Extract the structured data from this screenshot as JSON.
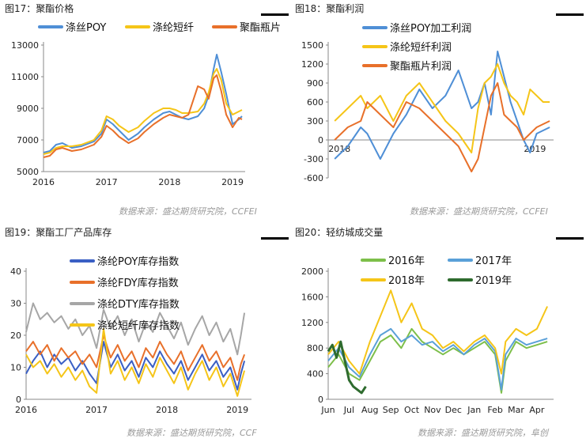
{
  "panels": [
    {
      "title": "图17：聚酯价格",
      "source": "数据来源：盛达期货研究院，CCFEI",
      "chart_data": {
        "type": "line",
        "x_ticks": [
          "2016",
          "2017",
          "2018",
          "2019"
        ],
        "y_ticks": [
          "5000",
          "7000",
          "9000",
          "11000",
          "13000"
        ],
        "ylim": [
          5000,
          13000
        ],
        "legend_position": "top",
        "series": [
          {
            "name": "涤丝POY",
            "color": "#4f8fd6",
            "x": [
              2016.0,
              2016.1,
              2016.2,
              2016.3,
              2016.45,
              2016.6,
              2016.8,
              2016.92,
              2017.0,
              2017.1,
              2017.2,
              2017.35,
              2017.5,
              2017.6,
              2017.75,
              2017.9,
              2018.0,
              2018.1,
              2018.2,
              2018.3,
              2018.45,
              2018.55,
              2018.62,
              2018.7,
              2018.75,
              2018.82,
              2018.9,
              2019.0,
              2019.1,
              2019.15
            ],
            "values": [
              6200,
              6300,
              6700,
              6800,
              6500,
              6600,
              6900,
              7400,
              8300,
              8000,
              7600,
              7000,
              7400,
              7800,
              8300,
              8700,
              8800,
              8600,
              8400,
              8300,
              8500,
              9000,
              9800,
              11500,
              12400,
              11300,
              9900,
              8000,
              8300,
              8500
            ]
          },
          {
            "name": "涤纶短纤",
            "color": "#f5c518",
            "x": [
              2016.0,
              2016.1,
              2016.2,
              2016.3,
              2016.45,
              2016.6,
              2016.8,
              2016.92,
              2017.0,
              2017.1,
              2017.2,
              2017.35,
              2017.5,
              2017.6,
              2017.75,
              2017.9,
              2018.0,
              2018.1,
              2018.2,
              2018.3,
              2018.45,
              2018.55,
              2018.62,
              2018.7,
              2018.75,
              2018.82,
              2018.9,
              2019.0,
              2019.1,
              2019.15
            ],
            "values": [
              6100,
              6200,
              6500,
              6600,
              6600,
              6700,
              7000,
              7600,
              8500,
              8300,
              7900,
              7500,
              7800,
              8200,
              8700,
              9000,
              9000,
              8900,
              8700,
              8700,
              8800,
              9300,
              10000,
              11200,
              11500,
              10800,
              9300,
              8600,
              8800,
              8900
            ]
          },
          {
            "name": "聚酯瓶片",
            "color": "#e8702a",
            "x": [
              2016.0,
              2016.1,
              2016.2,
              2016.3,
              2016.45,
              2016.6,
              2016.8,
              2016.92,
              2017.0,
              2017.1,
              2017.2,
              2017.35,
              2017.5,
              2017.6,
              2017.75,
              2017.9,
              2018.0,
              2018.1,
              2018.2,
              2018.3,
              2018.45,
              2018.55,
              2018.62,
              2018.7,
              2018.75,
              2018.82,
              2018.9,
              2019.0,
              2019.1,
              2019.15
            ],
            "values": [
              5900,
              6000,
              6400,
              6500,
              6300,
              6400,
              6700,
              7200,
              7900,
              7600,
              7200,
              6800,
              7100,
              7500,
              8000,
              8400,
              8600,
              8500,
              8400,
              8600,
              10400,
              10200,
              9600,
              10900,
              11100,
              10100,
              8600,
              7800,
              8400,
              8300
            ]
          }
        ]
      }
    },
    {
      "title": "图18：聚酯利润",
      "source": "数据来源：盛达期货研究院，CCFEI",
      "chart_data": {
        "type": "line",
        "x_ticks": [
          "2018",
          "2019"
        ],
        "y_ticks": [
          "-600",
          "-300",
          "0",
          "300",
          "600",
          "900",
          "1200",
          "1500"
        ],
        "ylim": [
          -600,
          1500
        ],
        "legend_position": "top-left",
        "series": [
          {
            "name": "涤丝POY加工利润",
            "color": "#4f8fd6",
            "x": [
              2017.5,
              2017.6,
              2017.7,
              2017.75,
              2017.85,
              2017.95,
              2018.05,
              2018.15,
              2018.25,
              2018.35,
              2018.45,
              2018.55,
              2018.6,
              2018.65,
              2018.7,
              2018.75,
              2018.8,
              2018.85,
              2018.9,
              2018.95,
              2019.0,
              2019.05,
              2019.1,
              2019.15
            ],
            "values": [
              -300,
              -100,
              200,
              100,
              -300,
              100,
              400,
              800,
              500,
              700,
              1100,
              500,
              600,
              900,
              400,
              1400,
              1000,
              600,
              300,
              0,
              -200,
              100,
              150,
              200
            ]
          },
          {
            "name": "涤纶短纤利润",
            "color": "#f5c518",
            "x": [
              2017.5,
              2017.6,
              2017.7,
              2017.75,
              2017.85,
              2017.95,
              2018.05,
              2018.15,
              2018.25,
              2018.35,
              2018.45,
              2018.55,
              2018.6,
              2018.65,
              2018.7,
              2018.75,
              2018.8,
              2018.85,
              2018.9,
              2018.95,
              2019.0,
              2019.05,
              2019.1,
              2019.15
            ],
            "values": [
              300,
              500,
              700,
              500,
              700,
              300,
              700,
              900,
              600,
              300,
              100,
              -200,
              500,
              900,
              1000,
              1200,
              900,
              700,
              600,
              400,
              800,
              700,
              600,
              600
            ]
          },
          {
            "name": "聚酯瓶片利润",
            "color": "#e8702a",
            "x": [
              2017.5,
              2017.6,
              2017.7,
              2017.75,
              2017.85,
              2017.95,
              2018.05,
              2018.15,
              2018.25,
              2018.35,
              2018.45,
              2018.55,
              2018.6,
              2018.65,
              2018.7,
              2018.75,
              2018.8,
              2018.85,
              2018.9,
              2018.95,
              2019.0,
              2019.05,
              2019.1,
              2019.15
            ],
            "values": [
              0,
              200,
              300,
              600,
              400,
              200,
              600,
              500,
              300,
              100,
              -100,
              -500,
              -300,
              200,
              700,
              900,
              400,
              300,
              200,
              0,
              100,
              200,
              250,
              300
            ]
          }
        ]
      }
    },
    {
      "title": "图19：聚酯工厂产品库存",
      "source": "数据来源：盛达期货研究院，CCF",
      "chart_data": {
        "type": "line",
        "x_ticks": [
          "2016",
          "2017",
          "2018",
          "2019"
        ],
        "y_ticks": [
          "0",
          "10",
          "20",
          "30",
          "40"
        ],
        "ylim": [
          0,
          40
        ],
        "legend_position": "top",
        "series": [
          {
            "name": "涤纶POY库存指数",
            "color": "#3a5fc4",
            "x": [
              2016.0,
              2016.1,
              2016.2,
              2016.3,
              2016.4,
              2016.5,
              2016.6,
              2016.7,
              2016.8,
              2016.9,
              2017.0,
              2017.1,
              2017.2,
              2017.3,
              2017.4,
              2017.5,
              2017.6,
              2017.7,
              2017.8,
              2017.9,
              2018.0,
              2018.1,
              2018.2,
              2018.3,
              2018.4,
              2018.5,
              2018.6,
              2018.7,
              2018.8,
              2018.9,
              2019.0,
              2019.05,
              2019.1
            ],
            "values": [
              8,
              12,
              15,
              10,
              14,
              11,
              13,
              9,
              12,
              8,
              5,
              18,
              10,
              14,
              9,
              12,
              7,
              13,
              10,
              15,
              11,
              8,
              12,
              6,
              10,
              14,
              9,
              12,
              7,
              10,
              3,
              8,
              12
            ]
          },
          {
            "name": "涤纶FDY库存指数",
            "color": "#e8702a",
            "x": [
              2016.0,
              2016.1,
              2016.2,
              2016.3,
              2016.4,
              2016.5,
              2016.6,
              2016.7,
              2016.8,
              2016.9,
              2017.0,
              2017.1,
              2017.2,
              2017.3,
              2017.4,
              2017.5,
              2017.6,
              2017.7,
              2017.8,
              2017.9,
              2018.0,
              2018.1,
              2018.2,
              2018.3,
              2018.4,
              2018.5,
              2018.6,
              2018.7,
              2018.8,
              2018.9,
              2019.0,
              2019.05,
              2019.1
            ],
            "values": [
              15,
              18,
              14,
              17,
              12,
              16,
              13,
              15,
              11,
              14,
              10,
              20,
              13,
              17,
              12,
              15,
              10,
              16,
              13,
              18,
              14,
              11,
              15,
              9,
              13,
              17,
              12,
              15,
              10,
              13,
              6,
              11,
              14
            ]
          },
          {
            "name": "涤纶DTY库存指数",
            "color": "#a6a6a6",
            "x": [
              2016.0,
              2016.1,
              2016.2,
              2016.3,
              2016.4,
              2016.5,
              2016.6,
              2016.7,
              2016.8,
              2016.9,
              2017.0,
              2017.1,
              2017.2,
              2017.3,
              2017.4,
              2017.5,
              2017.6,
              2017.7,
              2017.8,
              2017.9,
              2018.0,
              2018.1,
              2018.2,
              2018.3,
              2018.4,
              2018.5,
              2018.6,
              2018.7,
              2018.8,
              2018.9,
              2019.0,
              2019.05,
              2019.1
            ],
            "values": [
              21,
              30,
              25,
              27,
              24,
              26,
              22,
              25,
              20,
              23,
              16,
              28,
              22,
              26,
              20,
              25,
              18,
              24,
              21,
              27,
              23,
              19,
              24,
              17,
              22,
              26,
              20,
              24,
              18,
              22,
              14,
              20,
              27
            ]
          },
          {
            "name": "涤纶短纤库存指数",
            "color": "#f5c518",
            "x": [
              2016.0,
              2016.1,
              2016.2,
              2016.3,
              2016.4,
              2016.5,
              2016.6,
              2016.7,
              2016.8,
              2016.9,
              2017.0,
              2017.1,
              2017.2,
              2017.3,
              2017.4,
              2017.5,
              2017.6,
              2017.7,
              2017.8,
              2017.9,
              2018.0,
              2018.1,
              2018.2,
              2018.3,
              2018.4,
              2018.5,
              2018.6,
              2018.7,
              2018.8,
              2018.9,
              2019.0,
              2019.05,
              2019.1
            ],
            "values": [
              14,
              10,
              12,
              8,
              11,
              7,
              10,
              6,
              9,
              4,
              2,
              22,
              8,
              12,
              6,
              10,
              5,
              11,
              7,
              13,
              9,
              5,
              10,
              3,
              8,
              12,
              6,
              10,
              4,
              8,
              1,
              5,
              9
            ]
          }
        ]
      }
    },
    {
      "title": "图20：轻纺城成交量",
      "source": "数据来源：盛达期货研究院，阜创",
      "chart_data": {
        "type": "line",
        "x_ticks": [
          "Jun",
          "Jul",
          "Aug",
          "Sep",
          "Oct",
          "Nov",
          "Dec",
          "Jan",
          "Feb",
          "Mar",
          "Apr"
        ],
        "y_ticks": [
          "0",
          "400",
          "800",
          "1200",
          "1600",
          "2000"
        ],
        "ylim": [
          0,
          2000
        ],
        "legend_position": "top",
        "series": [
          {
            "name": "2016年",
            "color": "#7dbf4a",
            "x": [
              0,
              0.5,
              1,
              1.5,
              2,
              2.5,
              3,
              3.5,
              4,
              4.5,
              5,
              5.5,
              6,
              6.5,
              7,
              7.5,
              8,
              8.3,
              8.5,
              9,
              9.5,
              10,
              10.5
            ],
            "values": [
              500,
              700,
              400,
              300,
              600,
              900,
              1000,
              800,
              1100,
              900,
              800,
              700,
              800,
              700,
              800,
              900,
              700,
              100,
              600,
              900,
              800,
              850,
              900
            ]
          },
          {
            "name": "2017年",
            "color": "#5aa0d8",
            "x": [
              0,
              0.5,
              1,
              1.5,
              2,
              2.5,
              3,
              3.5,
              4,
              4.5,
              5,
              5.5,
              6,
              6.5,
              7,
              7.5,
              8,
              8.3,
              8.5,
              9,
              9.5,
              10,
              10.5
            ],
            "values": [
              600,
              800,
              500,
              350,
              700,
              1000,
              1100,
              900,
              1000,
              850,
              900,
              750,
              850,
              700,
              850,
              950,
              750,
              150,
              700,
              950,
              850,
              900,
              950
            ]
          },
          {
            "name": "2018年",
            "color": "#f5c518",
            "x": [
              0,
              0.5,
              1,
              1.5,
              2,
              2.5,
              3,
              3.5,
              4,
              4.5,
              5,
              5.5,
              6,
              6.5,
              7,
              7.5,
              8,
              8.3,
              8.5,
              9,
              9.5,
              10,
              10.5
            ],
            "values": [
              700,
              900,
              600,
              400,
              900,
              1300,
              1700,
              1200,
              1500,
              1100,
              1000,
              800,
              900,
              750,
              900,
              1000,
              800,
              400,
              900,
              1100,
              1000,
              1100,
              1450
            ]
          },
          {
            "name": "2019年",
            "color": "#2e6b2e",
            "x": [
              0,
              0.2,
              0.4,
              0.6,
              0.8,
              1,
              1.2,
              1.4,
              1.6,
              1.8
            ],
            "values": [
              750,
              850,
              650,
              900,
              600,
              300,
              200,
              150,
              100,
              200
            ]
          }
        ]
      }
    }
  ]
}
